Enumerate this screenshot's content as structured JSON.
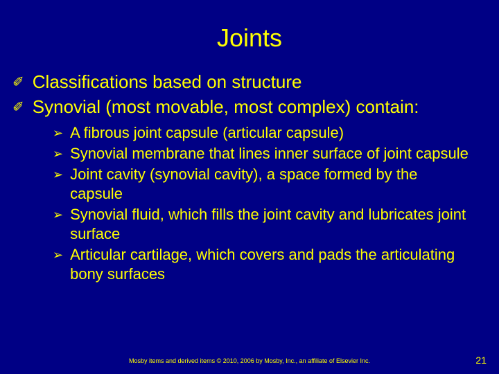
{
  "colors": {
    "background": "#000085",
    "text": "#ffff00"
  },
  "typography": {
    "title_fontsize": 36,
    "main_fontsize": 26,
    "sub_fontsize": 22,
    "footer_fontsize": 9,
    "pagenum_fontsize": 14,
    "font_family": "Arial"
  },
  "title": "Joints",
  "main_bullet": "✐",
  "sub_bullet": "➢",
  "main_items": [
    "Classifications based on structure",
    "Synovial (most movable, most complex) contain:"
  ],
  "sub_items": [
    "A fibrous joint capsule (articular capsule)",
    "Synovial membrane that lines inner surface of joint capsule",
    "Joint cavity (synovial cavity), a space formed by the capsule",
    "Synovial fluid, which fills the joint cavity and lubricates joint surface",
    "Articular cartilage, which covers and pads the articulating bony surfaces"
  ],
  "footer": "Mosby items and derived items © 2010, 2006 by Mosby, Inc., an affiliate of Elsevier Inc.",
  "page_number": "21"
}
